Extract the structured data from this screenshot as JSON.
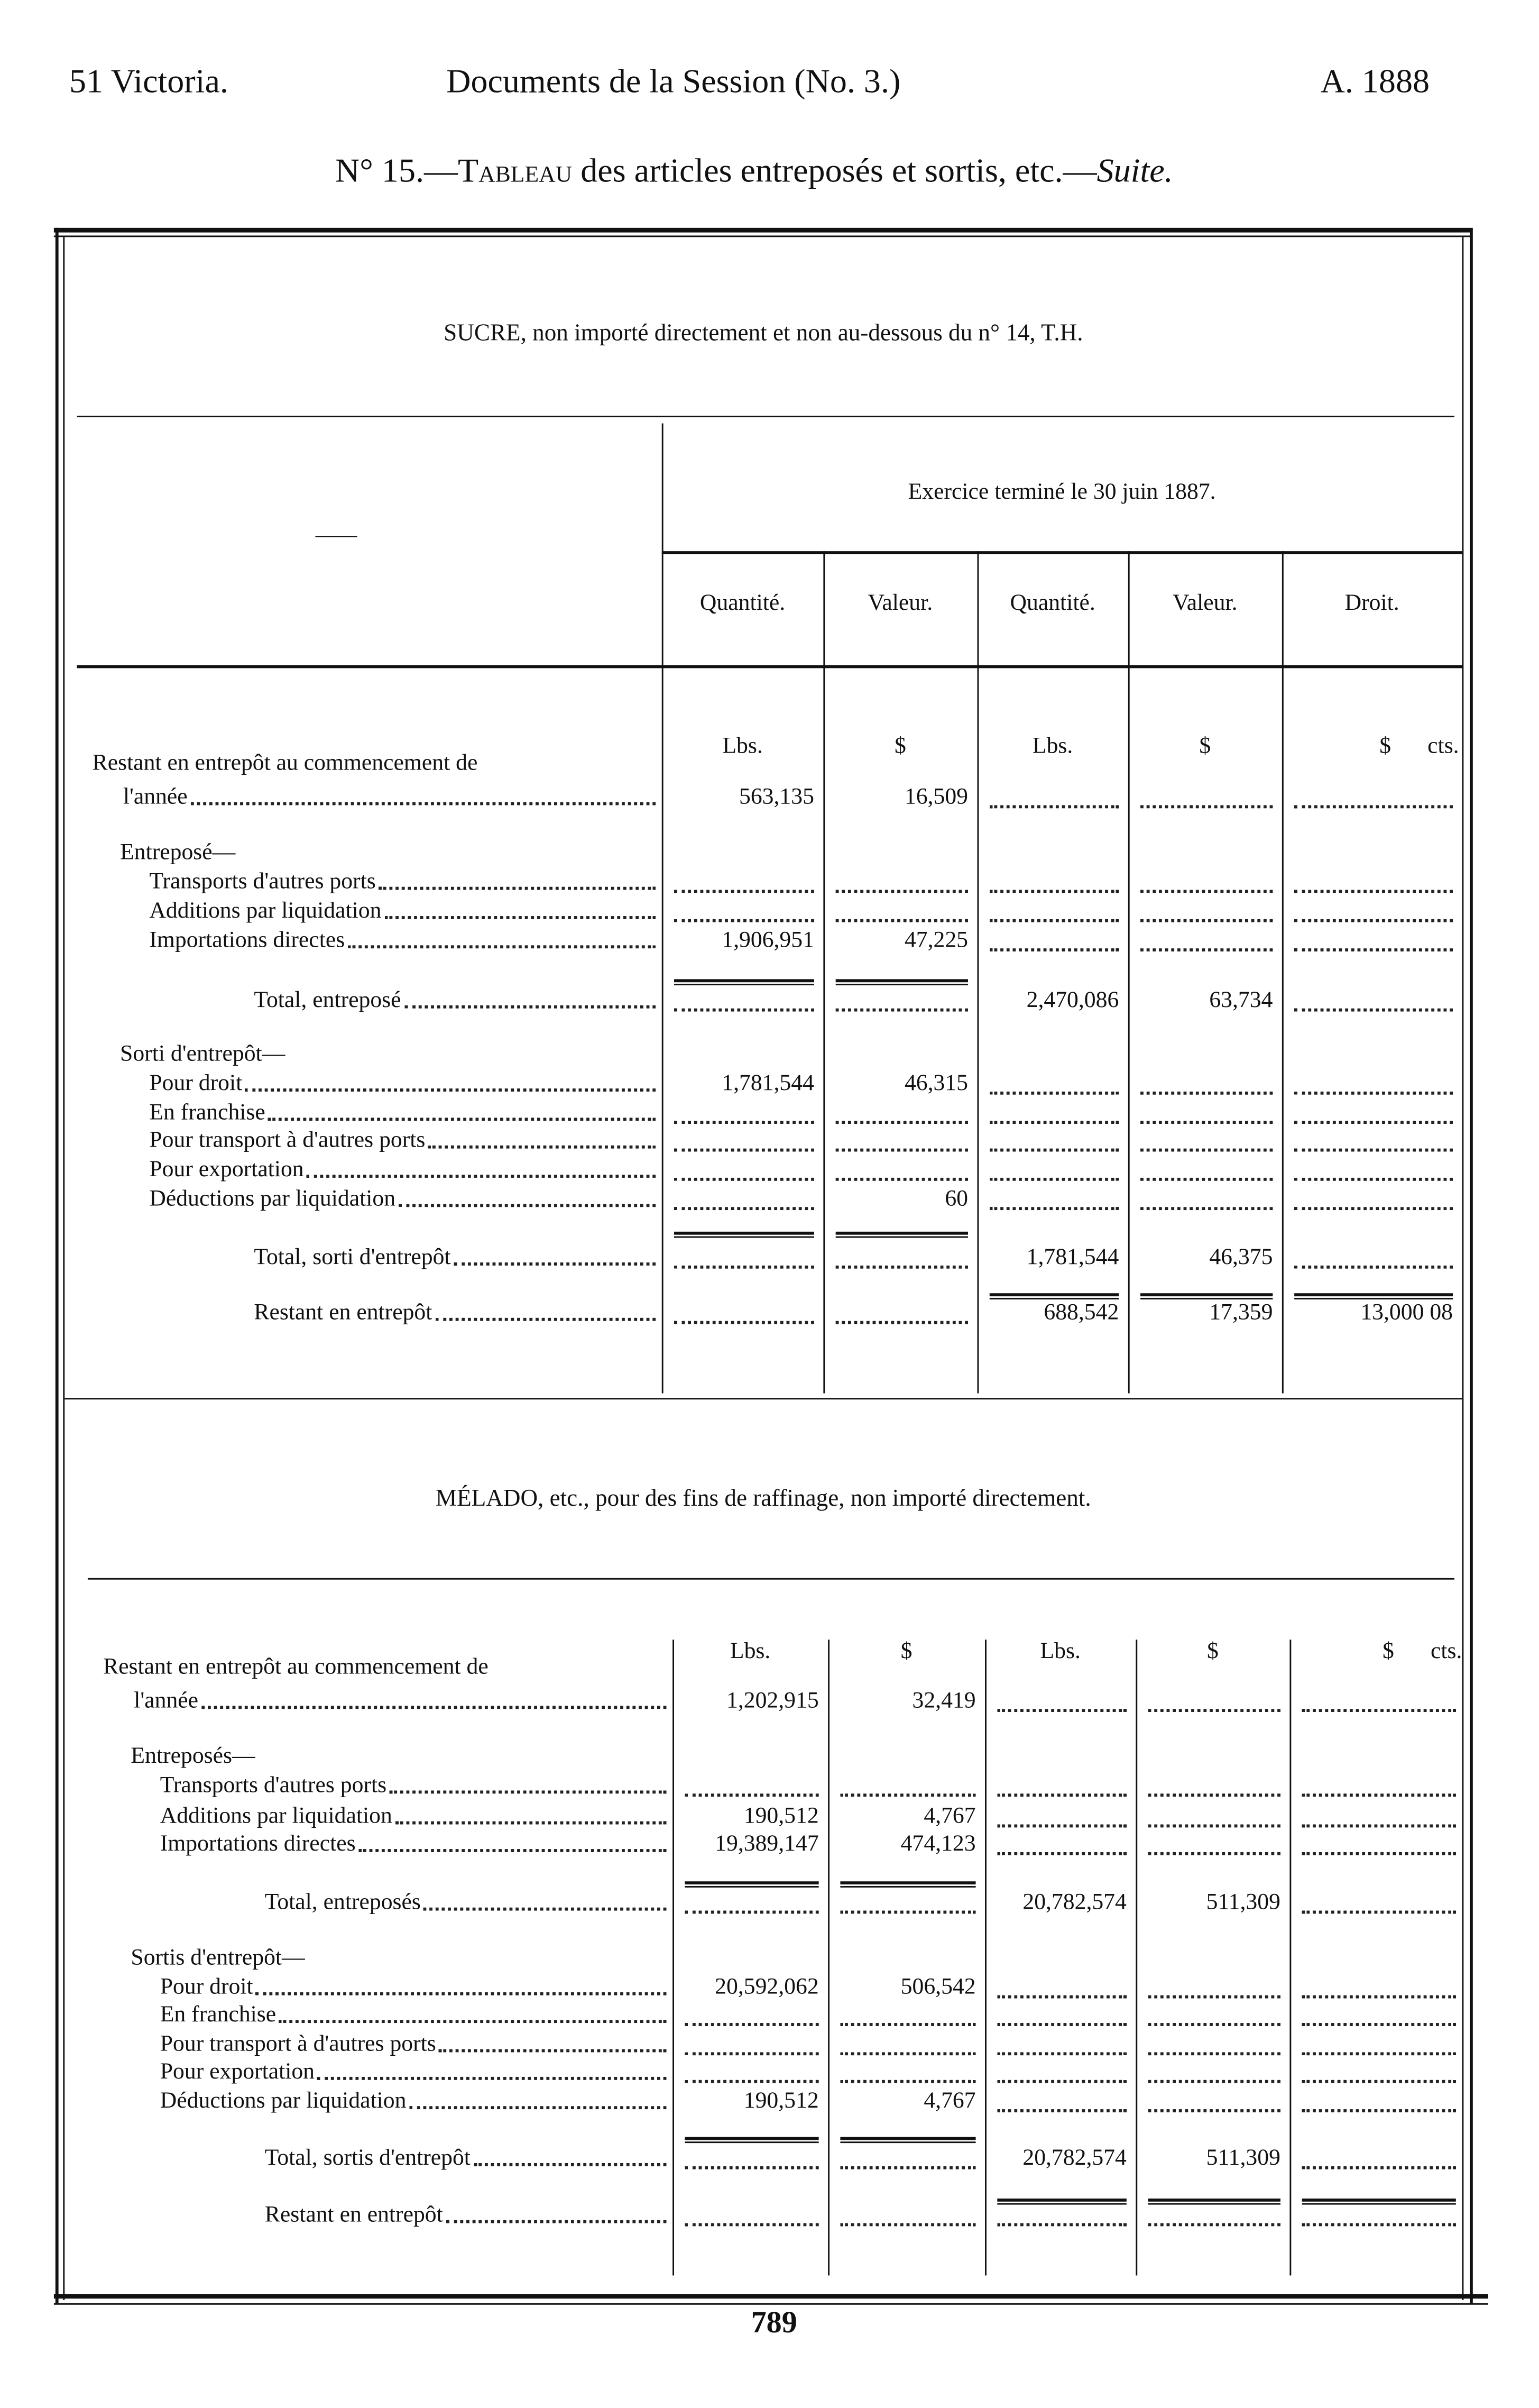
{
  "running_head": {
    "left": "51 Victoria.",
    "center": "Documents de la Session (No. 3.)",
    "right": "A. 1888"
  },
  "title": {
    "number": "N° 15.—",
    "sc": "Tableau",
    "rest": " des articles entreposés et sortis, etc.—",
    "suite": "Suite."
  },
  "header": {
    "exercise": "Exercice terminé le 30 juin 1887.",
    "stub": "——",
    "columns": [
      "Quantité.",
      "Valeur.",
      "Quantité.",
      "Valeur.",
      "Droit."
    ]
  },
  "sections": [
    {
      "title": "SUCRE, non importé directement et non au-dessous du n° 14, T.H.",
      "units": [
        "Lbs.",
        "$",
        "Lbs.",
        "$",
        "$ cts."
      ],
      "rows": [
        {
          "label": "Restant en entrepôt au commencement de",
          "label2": "l'année",
          "values": [
            "563,135",
            "16,509",
            "",
            "",
            ""
          ]
        },
        {
          "label": "Entreposé—",
          "heading": true
        },
        {
          "label": "Transports d'autres ports",
          "values": [
            "",
            "",
            "",
            "",
            ""
          ]
        },
        {
          "label": "Additions par liquidation",
          "values": [
            "",
            "",
            "",
            "",
            ""
          ]
        },
        {
          "label": "Importations directes",
          "values": [
            "1,906,951",
            "47,225",
            "",
            "",
            ""
          ]
        },
        {
          "label": "Total, entreposé",
          "values": [
            "",
            "",
            "2,470,086",
            "63,734",
            ""
          ]
        },
        {
          "label": "Sorti d'entrepôt—",
          "heading": true
        },
        {
          "label": "Pour droit",
          "values": [
            "1,781,544",
            "46,315",
            "",
            "",
            ""
          ]
        },
        {
          "label": "En franchise",
          "values": [
            "",
            "",
            "",
            "",
            ""
          ]
        },
        {
          "label": "Pour transport à d'autres ports",
          "values": [
            "",
            "",
            "",
            "",
            ""
          ]
        },
        {
          "label": "Pour exportation",
          "values": [
            "",
            "",
            "",
            "",
            ""
          ]
        },
        {
          "label": "Déductions par liquidation",
          "values": [
            "",
            "60",
            "",
            "",
            ""
          ]
        },
        {
          "label": "Total, sorti d'entrepôt",
          "values": [
            "",
            "",
            "1,781,544",
            "46,375",
            ""
          ]
        },
        {
          "label": "Restant en entrepôt",
          "values": [
            "",
            "",
            "688,542",
            "17,359",
            "13,000 08"
          ]
        }
      ]
    },
    {
      "title": "MÉLADO, etc., pour des fins de raffinage, non importé directement.",
      "units": [
        "Lbs.",
        "$",
        "Lbs.",
        "$",
        "$ cts."
      ],
      "rows": [
        {
          "label": "Restant en entrepôt au commencement de",
          "label2": "l'année",
          "values": [
            "1,202,915",
            "32,419",
            "",
            "",
            ""
          ]
        },
        {
          "label": "Entreposés—",
          "heading": true
        },
        {
          "label": "Transports d'autres ports",
          "values": [
            "",
            "",
            "",
            "",
            ""
          ]
        },
        {
          "label": "Additions par liquidation",
          "values": [
            "190,512",
            "4,767",
            "",
            "",
            ""
          ]
        },
        {
          "label": "Importations directes",
          "values": [
            "19,389,147",
            "474,123",
            "",
            "",
            ""
          ]
        },
        {
          "label": "Total, entreposés",
          "values": [
            "",
            "",
            "20,782,574",
            "511,309",
            ""
          ]
        },
        {
          "label": "Sortis d'entrepôt—",
          "heading": true
        },
        {
          "label": "Pour droit",
          "values": [
            "20,592,062",
            "506,542",
            "",
            "",
            ""
          ]
        },
        {
          "label": "En franchise",
          "values": [
            "",
            "",
            "",
            "",
            ""
          ]
        },
        {
          "label": "Pour transport à d'autres ports",
          "values": [
            "",
            "",
            "",
            "",
            ""
          ]
        },
        {
          "label": "Pour exportation",
          "values": [
            "",
            "",
            "",
            "",
            ""
          ]
        },
        {
          "label": "Déductions par liquidation",
          "values": [
            "190,512",
            "4,767",
            "",
            "",
            ""
          ]
        },
        {
          "label": "Total, sortis d'entrepôt",
          "values": [
            "",
            "",
            "20,782,574",
            "511,309",
            ""
          ]
        },
        {
          "label": "Restant en entrepôt",
          "values": [
            "",
            "",
            "",
            "",
            ""
          ]
        }
      ]
    }
  ],
  "page_number": "789"
}
